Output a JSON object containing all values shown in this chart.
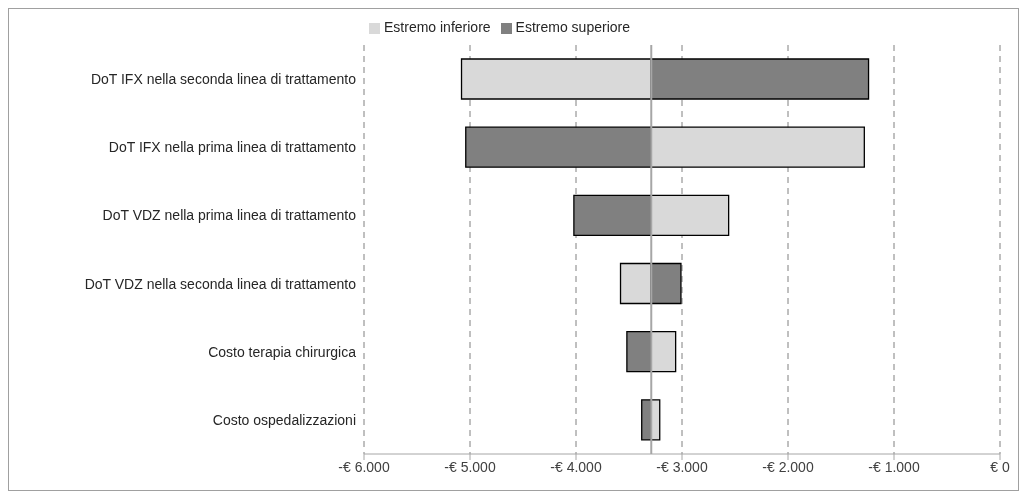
{
  "chart_data": {
    "type": "bar",
    "orientation": "horizontal",
    "categories": [
      "DoT IFX nella seconda linea di trattamento",
      "DoT IFX nella prima linea di trattamento",
      "DoT VDZ nella prima linea di trattamento",
      "DoT VDZ nella seconda linea di trattamento",
      "Costo terapia chirurgica",
      "Costo ospedalizzazioni"
    ],
    "series": [
      {
        "name": "Estremo superiore",
        "color": "#808080",
        "base": [
          -3290,
          -3290,
          -3290,
          -3290,
          -3290,
          -3290
        ],
        "values": [
          2050,
          -1750,
          -730,
          280,
          -230,
          -90
        ]
      },
      {
        "name": "Estremo inferiore",
        "color": "#d9d9d9",
        "base": [
          -3290,
          -3290,
          -3290,
          -3290,
          -3290,
          -3290
        ],
        "values": [
          -1790,
          2010,
          730,
          -290,
          230,
          80
        ]
      }
    ],
    "xlim": [
      -6000,
      0
    ],
    "xticks": [
      {
        "value": -6000,
        "label": "-€ 6.000"
      },
      {
        "value": -5000,
        "label": "-€ 5.000"
      },
      {
        "value": -4000,
        "label": "-€ 4.000"
      },
      {
        "value": -3000,
        "label": "-€ 3.000"
      },
      {
        "value": -2000,
        "label": "-€ 2.000"
      },
      {
        "value": -1000,
        "label": "-€ 1.000"
      },
      {
        "value": 0,
        "label": "€ 0"
      }
    ],
    "ref_lines": [
      {
        "axis": "x",
        "value": -3290,
        "color": "#a6a6a6"
      }
    ],
    "grid": "x",
    "legend": "top"
  }
}
